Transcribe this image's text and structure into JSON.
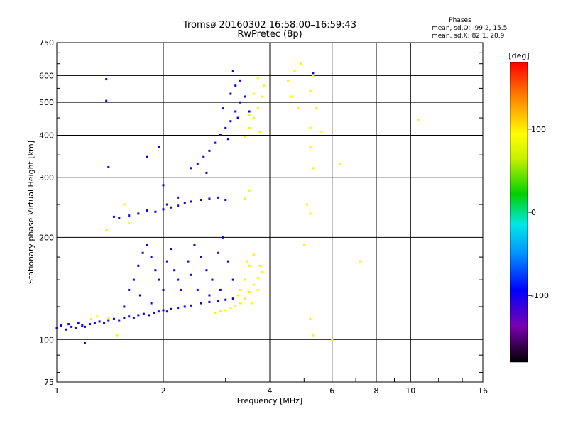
{
  "chart_data": {
    "type": "scatter",
    "title": "Tromsø 20160302 16:58:00–16:59:43",
    "subtitle": "RwPretec (8p)",
    "xlabel": "Frequency [MHz]",
    "ylabel": "Stationary phase Virtual Height [km]",
    "x_scale": "log",
    "y_scale": "log",
    "xlim": [
      1,
      16
    ],
    "ylim": [
      75,
      750
    ],
    "x_ticks": [
      1,
      2,
      4,
      6,
      8,
      10,
      16
    ],
    "y_ticks": [
      75,
      100,
      200,
      300,
      400,
      500,
      600,
      750
    ],
    "grid": true,
    "phase_box": {
      "heading": "Phases",
      "line1": "mean, sd,O: -99.2, 15.5",
      "line2": "mean, sd,X:  82.1, 20.9"
    },
    "colorbar": {
      "label": "[deg]",
      "ticks": [
        100,
        0,
        -100
      ],
      "range": [
        -180,
        180
      ]
    },
    "series": [
      {
        "mode": "O",
        "typical_phase_deg": -100,
        "points": [
          [
            1.0,
            108
          ],
          [
            1.03,
            110
          ],
          [
            1.06,
            107
          ],
          [
            1.08,
            111
          ],
          [
            1.1,
            109
          ],
          [
            1.13,
            108
          ],
          [
            1.15,
            112
          ],
          [
            1.18,
            110
          ],
          [
            1.2,
            109
          ],
          [
            1.24,
            111
          ],
          [
            1.28,
            112
          ],
          [
            1.32,
            113
          ],
          [
            1.36,
            112
          ],
          [
            1.4,
            114
          ],
          [
            1.45,
            115
          ],
          [
            1.5,
            114
          ],
          [
            1.55,
            116
          ],
          [
            1.6,
            117
          ],
          [
            1.65,
            116
          ],
          [
            1.7,
            118
          ],
          [
            1.76,
            119
          ],
          [
            1.82,
            118
          ],
          [
            1.88,
            120
          ],
          [
            1.94,
            121
          ],
          [
            2.0,
            122
          ],
          [
            2.05,
            121
          ],
          [
            2.1,
            123
          ],
          [
            2.2,
            124
          ],
          [
            2.3,
            125
          ],
          [
            2.4,
            126
          ],
          [
            2.55,
            128
          ],
          [
            2.7,
            129
          ],
          [
            2.85,
            130
          ],
          [
            3.0,
            131
          ],
          [
            3.15,
            132
          ],
          [
            1.55,
            125
          ],
          [
            1.6,
            140
          ],
          [
            1.65,
            150
          ],
          [
            1.7,
            165
          ],
          [
            1.75,
            180
          ],
          [
            1.8,
            190
          ],
          [
            1.85,
            175
          ],
          [
            1.9,
            160
          ],
          [
            1.95,
            150
          ],
          [
            2.0,
            140
          ],
          [
            2.05,
            170
          ],
          [
            2.1,
            185
          ],
          [
            2.15,
            160
          ],
          [
            2.2,
            150
          ],
          [
            2.25,
            140
          ],
          [
            2.35,
            170
          ],
          [
            2.45,
            190
          ],
          [
            2.55,
            175
          ],
          [
            2.65,
            160
          ],
          [
            2.75,
            150
          ],
          [
            2.85,
            180
          ],
          [
            2.95,
            200
          ],
          [
            3.05,
            170
          ],
          [
            3.15,
            150
          ],
          [
            2.5,
            140
          ],
          [
            2.7,
            135
          ],
          [
            1.72,
            135
          ],
          [
            1.85,
            128
          ],
          [
            2.4,
            155
          ],
          [
            2.9,
            140
          ],
          [
            1.45,
            230
          ],
          [
            1.5,
            228
          ],
          [
            1.6,
            232
          ],
          [
            1.7,
            235
          ],
          [
            1.8,
            240
          ],
          [
            1.9,
            238
          ],
          [
            2.0,
            242
          ],
          [
            2.1,
            245
          ],
          [
            2.2,
            248
          ],
          [
            2.3,
            252
          ],
          [
            2.4,
            255
          ],
          [
            2.55,
            258
          ],
          [
            2.7,
            260
          ],
          [
            2.85,
            262
          ],
          [
            3.0,
            258
          ],
          [
            2.2,
            262
          ],
          [
            2.05,
            250
          ],
          [
            2.4,
            320
          ],
          [
            2.5,
            330
          ],
          [
            2.6,
            345
          ],
          [
            2.7,
            360
          ],
          [
            2.8,
            380
          ],
          [
            2.9,
            400
          ],
          [
            3.0,
            420
          ],
          [
            3.1,
            440
          ],
          [
            3.2,
            470
          ],
          [
            3.3,
            500
          ],
          [
            3.1,
            530
          ],
          [
            3.2,
            560
          ],
          [
            3.3,
            580
          ],
          [
            3.15,
            620
          ],
          [
            2.95,
            480
          ],
          [
            3.05,
            390
          ],
          [
            2.65,
            310
          ],
          [
            3.25,
            450
          ],
          [
            3.4,
            520
          ],
          [
            3.5,
            470
          ],
          [
            1.95,
            370
          ],
          [
            1.8,
            345
          ],
          [
            1.4,
            322
          ],
          [
            1.38,
            585
          ],
          [
            1.38,
            505
          ],
          [
            2.0,
            285
          ],
          [
            1.2,
            98
          ],
          [
            5.3,
            610
          ]
        ]
      },
      {
        "mode": "X",
        "typical_phase_deg": 85,
        "points": [
          [
            2.8,
            120
          ],
          [
            2.9,
            121
          ],
          [
            3.0,
            122
          ],
          [
            3.1,
            124
          ],
          [
            3.2,
            126
          ],
          [
            3.3,
            128
          ],
          [
            3.4,
            132
          ],
          [
            3.5,
            138
          ],
          [
            3.6,
            145
          ],
          [
            3.7,
            152
          ],
          [
            3.8,
            158
          ],
          [
            3.6,
            178
          ],
          [
            3.5,
            165
          ],
          [
            3.4,
            150
          ],
          [
            3.3,
            140
          ],
          [
            3.45,
            170
          ],
          [
            3.7,
            140
          ],
          [
            3.55,
            128
          ],
          [
            3.75,
            165
          ],
          [
            3.25,
            135
          ],
          [
            3.4,
            395
          ],
          [
            3.5,
            420
          ],
          [
            3.6,
            450
          ],
          [
            3.7,
            480
          ],
          [
            3.8,
            520
          ],
          [
            3.85,
            560
          ],
          [
            3.7,
            590
          ],
          [
            3.6,
            530
          ],
          [
            3.5,
            460
          ],
          [
            3.75,
            410
          ],
          [
            4.5,
            580
          ],
          [
            4.7,
            620
          ],
          [
            4.9,
            650
          ],
          [
            4.6,
            520
          ],
          [
            4.8,
            480
          ],
          [
            5.2,
            540
          ],
          [
            5.3,
            600
          ],
          [
            5.4,
            480
          ],
          [
            5.2,
            420
          ],
          [
            5.2,
            370
          ],
          [
            5.3,
            320
          ],
          [
            5.1,
            250
          ],
          [
            5.2,
            235
          ],
          [
            5.0,
            190
          ],
          [
            5.2,
            115
          ],
          [
            5.3,
            103
          ],
          [
            1.3,
            117
          ],
          [
            1.4,
            116
          ],
          [
            1.25,
            115
          ],
          [
            1.48,
            103
          ],
          [
            1.38,
            210
          ],
          [
            1.55,
            250
          ],
          [
            1.6,
            220
          ],
          [
            3.5,
            275
          ],
          [
            3.4,
            260
          ],
          [
            10.5,
            445
          ],
          [
            7.2,
            170
          ],
          [
            6.0,
            100
          ],
          [
            6.3,
            330
          ],
          [
            5.6,
            410
          ]
        ]
      }
    ]
  }
}
